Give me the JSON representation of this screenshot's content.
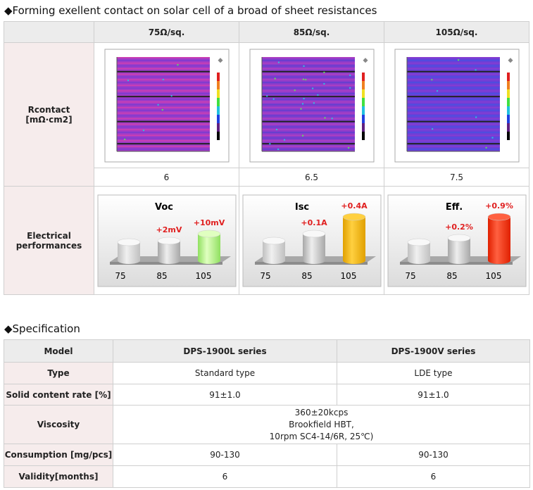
{
  "section1": {
    "title": "◆Forming exellent contact on solar cell of a broad of sheet resistances",
    "columns": [
      "75Ω/sq.",
      "85Ω/sq.",
      "105Ω/sq."
    ],
    "rcontact": {
      "label": [
        "Rcontact",
        "[mΩ·cm2]"
      ],
      "values": [
        "6",
        "6.5",
        "7.5"
      ]
    },
    "electrical": {
      "label": [
        "Electrical",
        "performances"
      ],
      "charts": [
        {
          "title": "Voc",
          "bars": [
            {
              "label": "75"
            },
            {
              "label": "85",
              "delta": "+2mV"
            },
            {
              "label": "105",
              "delta": "+10mV"
            }
          ]
        },
        {
          "title": "Isc",
          "bars": [
            {
              "label": "75"
            },
            {
              "label": "85",
              "delta": "+0.1A"
            },
            {
              "label": "105",
              "delta": "+0.4A"
            }
          ]
        },
        {
          "title": "Eff.",
          "bars": [
            {
              "label": "75"
            },
            {
              "label": "85",
              "delta": "+0.2%"
            },
            {
              "label": "105",
              "delta": "+0.9%"
            }
          ]
        }
      ]
    }
  },
  "section2": {
    "title": "◆Specification",
    "header": [
      "Model",
      "DPS-1900L series",
      "DPS-1900V series"
    ],
    "rows": [
      {
        "label": "Type",
        "values": [
          "Standard type",
          "LDE type"
        ]
      },
      {
        "label": "Solid content rate [%]",
        "values": [
          "91±1.0",
          "91±1.0"
        ]
      },
      {
        "label": "Viscosity",
        "merged": [
          "360±20kcps",
          "Brookfield HBT,",
          "10rpm SC4-14/6R, 25℃)"
        ]
      },
      {
        "label": "Consumption [mg/pcs]",
        "values": [
          "90-130",
          "90-130"
        ]
      },
      {
        "label": "Validity[months]",
        "values": [
          "6",
          "6"
        ]
      }
    ]
  }
}
